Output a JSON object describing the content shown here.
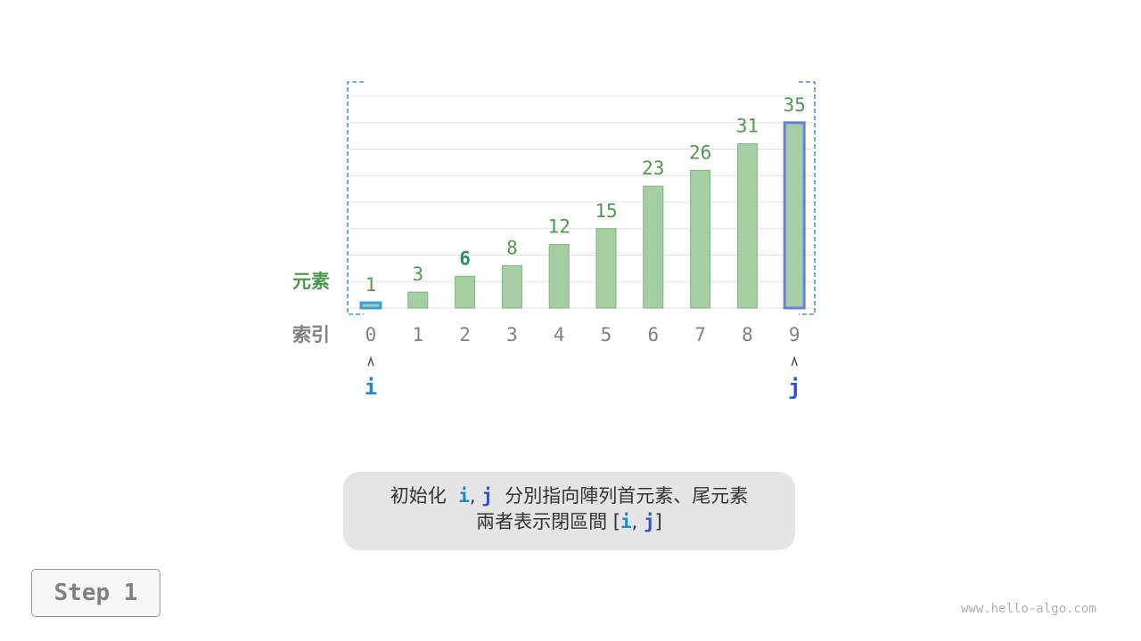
{
  "chart_data": {
    "type": "bar",
    "categories": [
      "0",
      "1",
      "2",
      "3",
      "4",
      "5",
      "6",
      "7",
      "8",
      "9"
    ],
    "values": [
      1,
      3,
      6,
      8,
      12,
      15,
      23,
      26,
      31,
      35
    ],
    "row_labels": {
      "value": "元素",
      "index": "索引"
    },
    "highlight": {
      "target_index": 2,
      "i_index": 0,
      "j_index": 9
    },
    "pointers": {
      "i": "i",
      "j": "j"
    },
    "colors": {
      "bar": "#a5cea3",
      "bar_border": "#7fb47c",
      "value_label": "#4e9a4e",
      "target_label": "#2e8b7a",
      "index_label": "#808080",
      "i": "#1e88d0",
      "j": "#2f4fd6",
      "bracket_i": "#3a9ee0",
      "bracket_j": "#6a80e0",
      "grid": "#e0e0e0"
    }
  },
  "caption": {
    "line1_prefix": "初始化",
    "i": "i",
    "comma": ",",
    "j": "j",
    "line1_suffix": "分別指向陣列首元素、尾元素",
    "line2_prefix": "兩者表示閉區間 [",
    "line2_suffix": "]"
  },
  "step": "Step 1",
  "watermark": "www.hello-algo.com"
}
